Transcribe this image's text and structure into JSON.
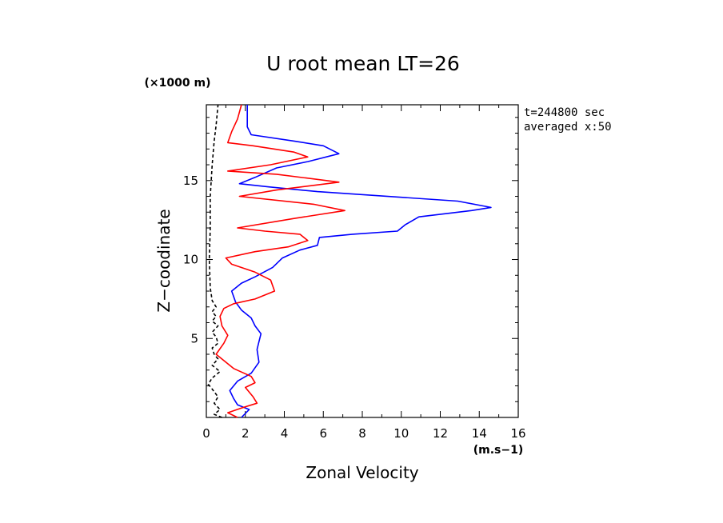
{
  "chart_data": {
    "type": "line",
    "title": "U root mean LT=26",
    "xlabel": "Zonal Velocity",
    "ylabel": "Z−coodinate",
    "x_unit": "(m.s−1)",
    "y_unit": "(×1000 m)",
    "annotations": [
      "t=244800 sec",
      "averaged  x:50"
    ],
    "xlim": [
      0,
      16
    ],
    "ylim": [
      0,
      19.8
    ],
    "x_ticks": [
      0,
      2,
      4,
      6,
      8,
      10,
      12,
      14,
      16
    ],
    "x_tick_labels": [
      "0",
      "2",
      "4",
      "6",
      "8",
      "10",
      "12",
      "14",
      "16"
    ],
    "y_ticks": [
      5,
      10,
      15
    ],
    "y_tick_labels": [
      "5",
      "10",
      "15"
    ],
    "grid": false,
    "series": [
      {
        "color": "#0000ff",
        "style": "solid",
        "points": [
          [
            1.8,
            0
          ],
          [
            2.2,
            0.5
          ],
          [
            1.6,
            0.8
          ],
          [
            1.4,
            1.2
          ],
          [
            1.2,
            1.7
          ],
          [
            1.6,
            2.3
          ],
          [
            2.3,
            2.8
          ],
          [
            2.7,
            3.5
          ],
          [
            2.6,
            4.3
          ],
          [
            2.7,
            4.8
          ],
          [
            2.8,
            5.3
          ],
          [
            2.5,
            5.8
          ],
          [
            2.3,
            6.3
          ],
          [
            1.8,
            6.8
          ],
          [
            1.5,
            7.3
          ],
          [
            1.3,
            8
          ],
          [
            1.8,
            8.5
          ],
          [
            2.5,
            8.9
          ],
          [
            3.4,
            9.5
          ],
          [
            3.9,
            10.1
          ],
          [
            4.8,
            10.6
          ],
          [
            5.7,
            10.9
          ],
          [
            5.8,
            11.4
          ],
          [
            7.5,
            11.6
          ],
          [
            9.8,
            11.8
          ],
          [
            10.2,
            12.2
          ],
          [
            10.9,
            12.7
          ],
          [
            13.6,
            13.1
          ],
          [
            14.6,
            13.3
          ],
          [
            12.9,
            13.7
          ],
          [
            5.7,
            14.3
          ],
          [
            3.2,
            14.6
          ],
          [
            1.7,
            14.8
          ],
          [
            2.5,
            15.2
          ],
          [
            3.6,
            15.8
          ],
          [
            5.2,
            16.2
          ],
          [
            6.8,
            16.7
          ],
          [
            6.0,
            17.2
          ],
          [
            4.5,
            17.5
          ],
          [
            2.3,
            17.9
          ],
          [
            2.1,
            18.4
          ],
          [
            2.1,
            19.4
          ],
          [
            2.1,
            19.8
          ]
        ]
      },
      {
        "color": "#ff0000",
        "style": "solid",
        "points": [
          [
            1.6,
            0
          ],
          [
            1.1,
            0.3
          ],
          [
            1.8,
            0.6
          ],
          [
            2.6,
            0.9
          ],
          [
            2.4,
            1.3
          ],
          [
            2.0,
            1.9
          ],
          [
            2.5,
            2.2
          ],
          [
            2.3,
            2.6
          ],
          [
            1.4,
            3.1
          ],
          [
            0.5,
            4.0
          ],
          [
            0.9,
            4.7
          ],
          [
            1.1,
            5.2
          ],
          [
            0.8,
            5.8
          ],
          [
            0.7,
            6.4
          ],
          [
            0.9,
            6.9
          ],
          [
            1.4,
            7.2
          ],
          [
            2.5,
            7.5
          ],
          [
            3.5,
            8.0
          ],
          [
            3.3,
            8.7
          ],
          [
            2.5,
            9.2
          ],
          [
            1.3,
            9.7
          ],
          [
            1.0,
            10.1
          ],
          [
            2.5,
            10.5
          ],
          [
            4.2,
            10.8
          ],
          [
            5.2,
            11.2
          ],
          [
            4.8,
            11.6
          ],
          [
            3.0,
            11.8
          ],
          [
            1.6,
            12.0
          ],
          [
            4.5,
            12.6
          ],
          [
            7.1,
            13.1
          ],
          [
            5.5,
            13.5
          ],
          [
            1.7,
            14.0
          ],
          [
            3.6,
            14.4
          ],
          [
            6.8,
            14.9
          ],
          [
            3.6,
            15.4
          ],
          [
            1.1,
            15.6
          ],
          [
            3.3,
            16.0
          ],
          [
            5.2,
            16.5
          ],
          [
            4.5,
            16.8
          ],
          [
            2.4,
            17.2
          ],
          [
            1.1,
            17.4
          ],
          [
            1.3,
            18.1
          ],
          [
            1.6,
            18.9
          ],
          [
            1.8,
            19.8
          ]
        ]
      },
      {
        "color": "#000000",
        "style": "dashed",
        "points": [
          [
            0.8,
            0
          ],
          [
            0.4,
            0.2
          ],
          [
            0.7,
            0.5
          ],
          [
            0.4,
            0.9
          ],
          [
            0.6,
            1.3
          ],
          [
            0.3,
            1.8
          ],
          [
            0.1,
            2.1
          ],
          [
            0.3,
            2.5
          ],
          [
            0.7,
            2.9
          ],
          [
            0.3,
            3.3
          ],
          [
            0.6,
            3.7
          ],
          [
            0.4,
            4.0
          ],
          [
            0.3,
            4.4
          ],
          [
            0.6,
            4.7
          ],
          [
            0.5,
            5.1
          ],
          [
            0.3,
            5.4
          ],
          [
            0.6,
            5.8
          ],
          [
            0.3,
            6.1
          ],
          [
            0.5,
            6.4
          ],
          [
            0.3,
            6.7
          ],
          [
            0.5,
            7.0
          ],
          [
            0.3,
            7.4
          ],
          [
            0.2,
            8.2
          ],
          [
            0.15,
            10
          ],
          [
            0.2,
            12
          ],
          [
            0.2,
            14
          ],
          [
            0.3,
            16
          ],
          [
            0.4,
            17.5
          ],
          [
            0.5,
            18.5
          ],
          [
            0.6,
            19.8
          ]
        ]
      }
    ]
  }
}
